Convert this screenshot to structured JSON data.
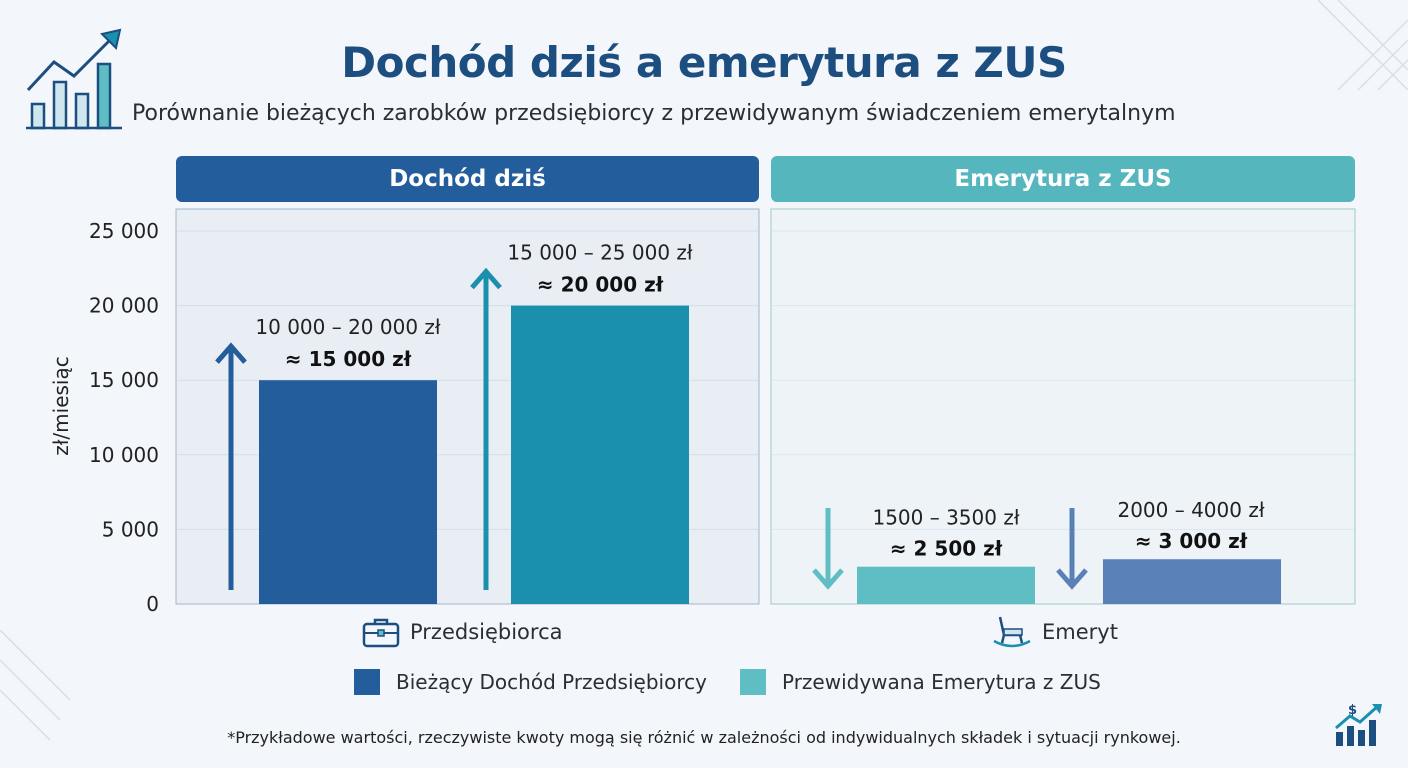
{
  "title": "Dochód dziś a emerytura z ZUS",
  "subtitle": "Porównanie bieżących zarobków przedsiębiorcy z przewidywanym świadczeniem emerytalnym",
  "panels": {
    "left_header": "Dochód dziś",
    "right_header": "Emerytura z ZUS"
  },
  "categories": {
    "left": "Przedsiębiorca",
    "right": "Emeryt"
  },
  "legend": {
    "item1": "Bieżący Dochód Przedsiębiorcy",
    "item2": "Przewidywana Emerytura z ZUS"
  },
  "footnote": "*Przykładowe wartości, rzeczywiste kwoty mogą się różnić w zależności od indywidualnych składek i sytuacji rynkowej.",
  "icons": {
    "top_left": "growth-chart-icon",
    "left_category": "briefcase-icon",
    "right_category": "rocking-chair-icon",
    "bottom_right": "dollar-growth-icon"
  },
  "colors": {
    "income_dark": "#235d9c",
    "income_teal": "#1a8fae",
    "pension_teal": "#5fbec4",
    "pension_blue": "#5a80b8",
    "title": "#1d4e80"
  },
  "chart_data": {
    "type": "bar",
    "ylabel": "zł/miesiąc",
    "ylim": [
      0,
      25000
    ],
    "yticks": [
      "0",
      "5 000",
      "10 000",
      "15 000",
      "20 000",
      "25 000"
    ],
    "ytick_values": [
      0,
      5000,
      10000,
      15000,
      20000,
      25000
    ],
    "bars": [
      {
        "panel": "left",
        "value": 15000,
        "range_label": "10 000 – 20 000 zł",
        "value_label": "≈ 15 000 zł",
        "color": "#235d9c",
        "arrow": "up"
      },
      {
        "panel": "left",
        "value": 20000,
        "range_label": "15 000 – 25 000 zł",
        "value_label": "≈ 20 000 zł",
        "color": "#1a8fae",
        "arrow": "up"
      },
      {
        "panel": "right",
        "value": 2500,
        "range_label": "1500 – 3500 zł",
        "value_label": "≈ 2 500 zł",
        "color": "#5fbec4",
        "arrow": "down"
      },
      {
        "panel": "right",
        "value": 3000,
        "range_label": "2000 – 4000 zł",
        "value_label": "≈ 3 000 zł",
        "color": "#5a80b8",
        "arrow": "down"
      }
    ]
  }
}
